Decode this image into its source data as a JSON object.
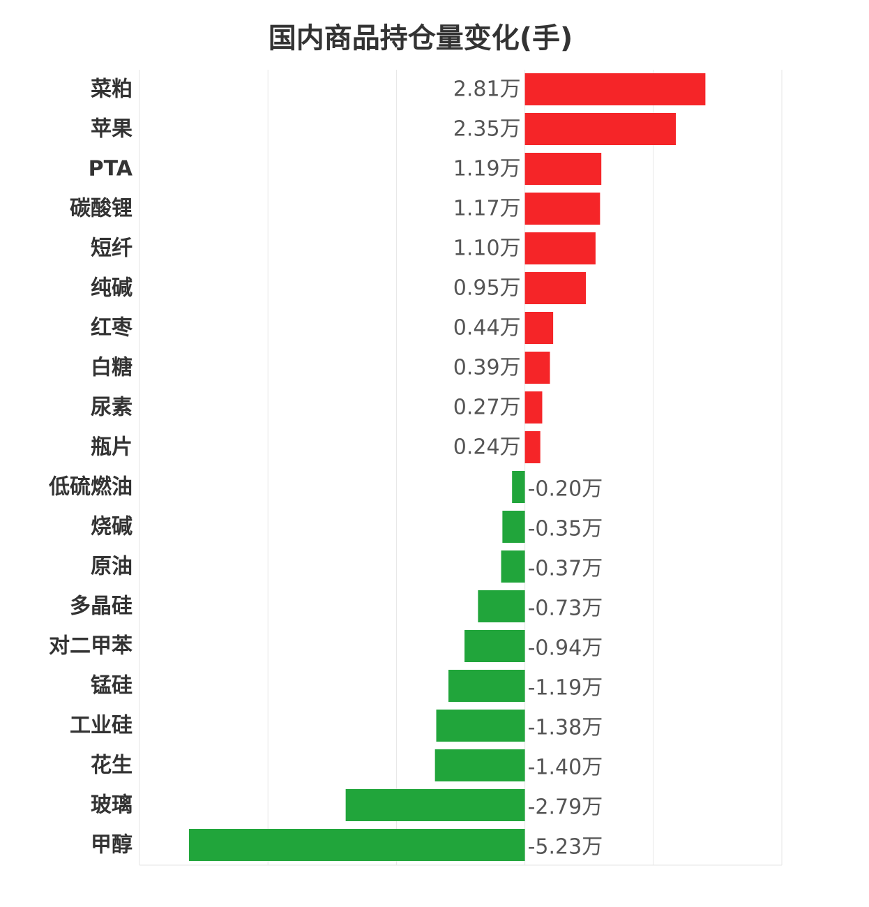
{
  "chart_data": {
    "type": "bar",
    "orientation": "horizontal",
    "title": "国内商品持仓量变化(手)",
    "xlabel": "",
    "ylabel": "",
    "unit_suffix": "万",
    "xlim": [
      -6.0,
      4.0
    ],
    "grid": true,
    "positive_color": "#f52528",
    "negative_color": "#21a53b",
    "categories": [
      "菜粕",
      "苹果",
      "PTA",
      "碳酸锂",
      "短纤",
      "纯碱",
      "红枣",
      "白糖",
      "尿素",
      "瓶片",
      "低硫燃油",
      "烧碱",
      "原油",
      "多晶硅",
      "对二甲苯",
      "锰硅",
      "工业硅",
      "花生",
      "玻璃",
      "甲醇"
    ],
    "values": [
      2.81,
      2.35,
      1.19,
      1.17,
      1.1,
      0.95,
      0.44,
      0.39,
      0.27,
      0.24,
      -0.2,
      -0.35,
      -0.37,
      -0.73,
      -0.94,
      -1.19,
      -1.38,
      -1.4,
      -2.79,
      -5.23
    ],
    "value_labels": [
      "2.81万",
      "2.35万",
      "1.19万",
      "1.17万",
      "1.10万",
      "0.95万",
      "0.44万",
      "0.39万",
      "0.27万",
      "0.24万",
      "-0.20万",
      "-0.35万",
      "-0.37万",
      "-0.73万",
      "-0.94万",
      "-1.19万",
      "-1.38万",
      "-1.40万",
      "-2.79万",
      "-5.23万"
    ]
  }
}
